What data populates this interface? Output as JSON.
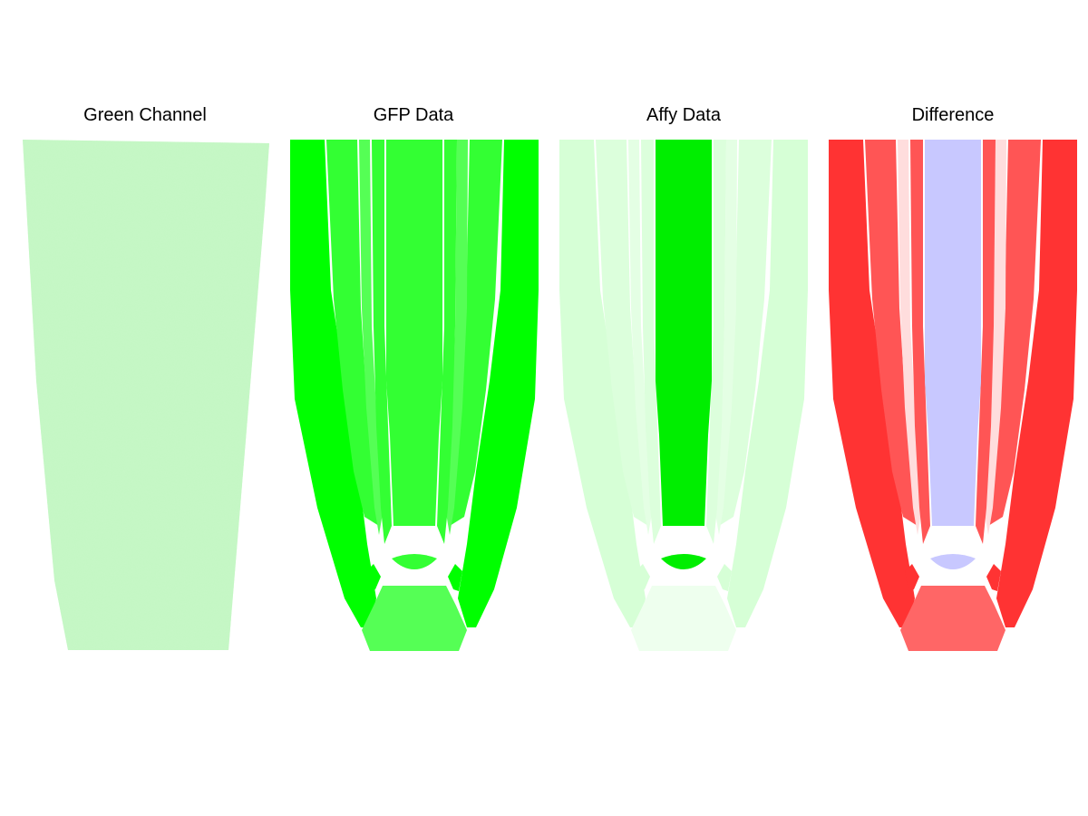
{
  "panels": [
    {
      "title": "Green Channel",
      "icon": "noisy-green-root-image"
    },
    {
      "title": "GFP Data",
      "icon": "root-tissue-diagram"
    },
    {
      "title": "Affy Data",
      "icon": "root-tissue-diagram"
    },
    {
      "title": "Difference",
      "icon": "root-tissue-diagram"
    }
  ],
  "colors": {
    "gfp": {
      "outer": "#00ff00",
      "mid": "#33ff33",
      "midlight": "#55ff55",
      "center": "#33ff33",
      "col": "#55ff55"
    },
    "affy": {
      "outer": "#d6ffd6",
      "mid": "#dcffdc",
      "midlight": "#e4ffe4",
      "center": "#00ee00",
      "col": "#eeffee"
    },
    "diff": {
      "outer": "#ff3333",
      "mid": "#ff5555",
      "midlight": "#ffdddd",
      "center": "#c8c8ff",
      "col": "#ff6666"
    },
    "green_channel": "#b8f5b8"
  }
}
